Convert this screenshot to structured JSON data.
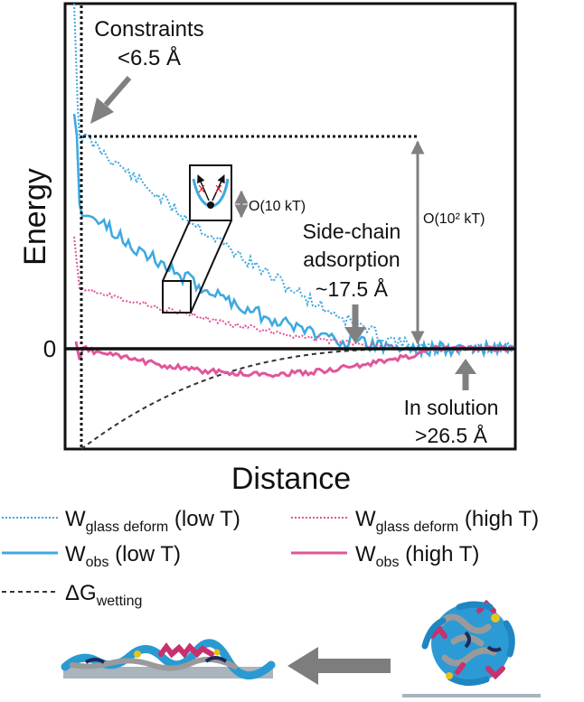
{
  "axes": {
    "ylabel": "Energy",
    "xlabel": "Distance",
    "zero_tick": "0"
  },
  "annotations": {
    "constraints_line1": "Constraints",
    "constraints_line2": "<6.5 Å",
    "inset_scale": "O(10 kT)",
    "big_scale": "O(10² kT)",
    "sidechain_line1": "Side-chain",
    "sidechain_line2": "adsorption",
    "sidechain_line3": "~17.5 Å",
    "solution_line1": "In solution",
    "solution_line2": ">26.5 Å"
  },
  "legend": [
    {
      "id": "glass-low",
      "main": "W",
      "sub": "glass deform",
      "suffix": " (low T)",
      "color": "#3fa9e0",
      "style": "dotted"
    },
    {
      "id": "glass-high",
      "main": "W",
      "sub": "glass deform",
      "suffix": " (high T)",
      "color": "#e0569a",
      "style": "dotted"
    },
    {
      "id": "obs-low",
      "main": "W",
      "sub": "obs",
      "suffix": " (low T)",
      "color": "#3fa9e0",
      "style": "solid"
    },
    {
      "id": "obs-high",
      "main": "W",
      "sub": "obs",
      "suffix": " (high T)",
      "color": "#e0569a",
      "style": "solid"
    },
    {
      "id": "wetting",
      "main": "ΔG",
      "sub": "wetting",
      "suffix": "",
      "color": "#333333",
      "style": "dashed"
    }
  ],
  "colors": {
    "blue": "#3fa9e0",
    "pink": "#e0569a",
    "gray_arrow": "#808080",
    "dark": "#111111"
  }
}
